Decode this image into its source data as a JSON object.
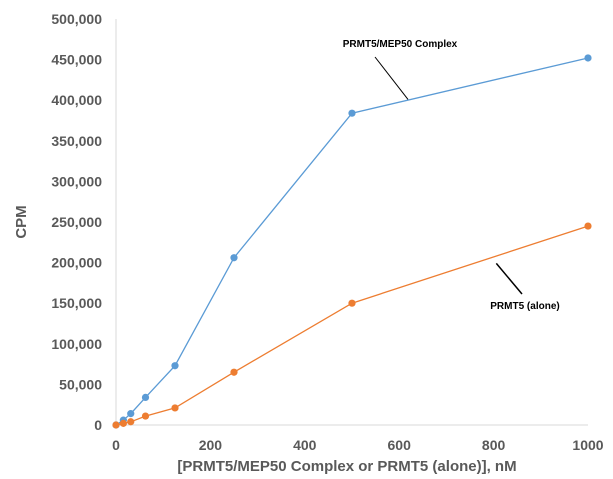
{
  "chart_data": {
    "type": "line",
    "title": "",
    "xlabel": "[PRMT5/MEP50 Complex or PRMT5 (alone)], nM",
    "ylabel": "CPM",
    "xlim": [
      0,
      1000
    ],
    "ylim": [
      0,
      500000
    ],
    "x_ticks": [
      0,
      200,
      400,
      600,
      800,
      1000
    ],
    "x_tick_labels": [
      "0",
      "200",
      "400",
      "600",
      "800",
      "1000"
    ],
    "y_ticks": [
      0,
      50000,
      100000,
      150000,
      200000,
      250000,
      300000,
      350000,
      400000,
      450000,
      500000
    ],
    "y_tick_labels": [
      "0",
      "50,000",
      "100,000",
      "150,000",
      "200,000",
      "250,000",
      "300,000",
      "350,000",
      "400,000",
      "450,000",
      "500,000"
    ],
    "grid": false,
    "legend": "none",
    "series": [
      {
        "name": "PRMT5/MEP50 Complex",
        "color": "#5B9BD5",
        "x": [
          0,
          15.6,
          31.25,
          62.5,
          125,
          250,
          500,
          1000
        ],
        "y": [
          0,
          6000,
          14000,
          34000,
          73000,
          206000,
          384000,
          452000
        ]
      },
      {
        "name": "PRMT5 (alone)",
        "color": "#ED7D31",
        "x": [
          0,
          15.6,
          31.25,
          62.5,
          125,
          250,
          500,
          1000
        ],
        "y": [
          0,
          2000,
          4000,
          11000,
          21000,
          65000,
          150000,
          245000
        ]
      }
    ],
    "annotations": [
      {
        "text": "PRMT5/MEP50 Complex",
        "series": 0,
        "at_x": 625
      },
      {
        "text": "PRMT5 (alone)",
        "series": 1,
        "at_x": 810
      }
    ]
  }
}
